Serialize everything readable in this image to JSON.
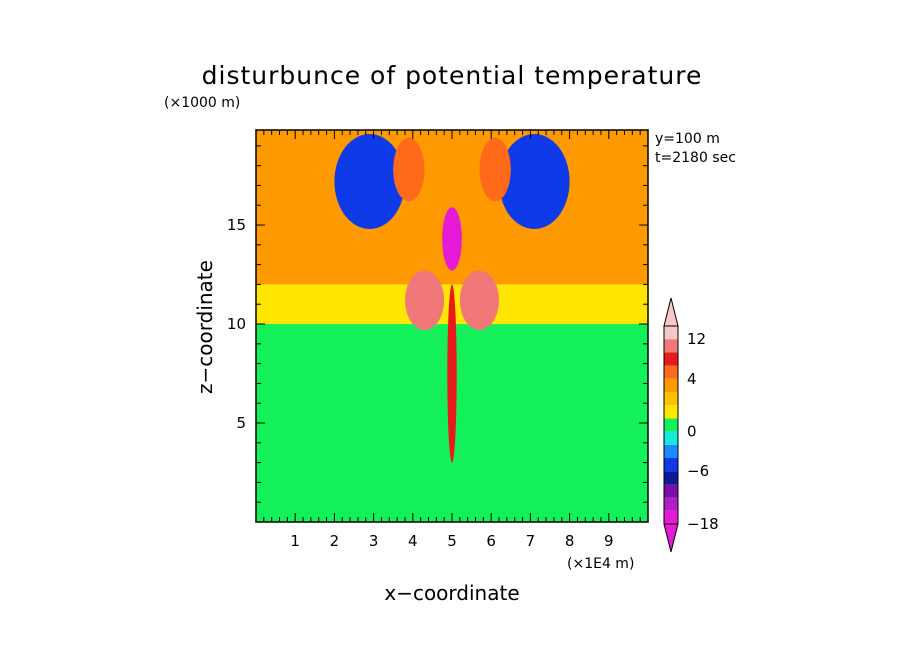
{
  "chart_data": {
    "type": "heatmap",
    "title": "disturbunce of potential temperature",
    "xlabel": "x−coordinate",
    "ylabel": "z−coordinate",
    "x_unit": "(×1E4 m)",
    "y_unit": "(×1000 m)",
    "annotations": [
      "y=100 m",
      "t=2180 sec"
    ],
    "xlim": [
      0,
      10
    ],
    "ylim": [
      0,
      19.8
    ],
    "x_ticks": [
      1,
      2,
      3,
      4,
      5,
      6,
      7,
      8,
      9
    ],
    "y_ticks": [
      5,
      10,
      15
    ],
    "colorbar": {
      "labels": [
        {
          "value": 12,
          "text": "12"
        },
        {
          "value": 4,
          "text": "4"
        },
        {
          "value": 0,
          "text": "0"
        },
        {
          "value": -6,
          "text": "−6"
        },
        {
          "value": -18,
          "text": "−18"
        }
      ],
      "levels": [
        {
          "min": -18,
          "max": -15,
          "color": "#e51ad6"
        },
        {
          "min": -15,
          "max": -12,
          "color": "#b01fc4"
        },
        {
          "min": -12,
          "max": -9,
          "color": "#7a0ea8"
        },
        {
          "min": -9,
          "max": -6,
          "color": "#0a1a9a"
        },
        {
          "min": -6,
          "max": -3,
          "color": "#0f3ae8"
        },
        {
          "min": -3,
          "max": -1,
          "color": "#1a8cff"
        },
        {
          "min": -1,
          "max": 0,
          "color": "#17e8d8"
        },
        {
          "min": 0,
          "max": 1,
          "color": "#14f05a"
        },
        {
          "min": 1,
          "max": 2,
          "color": "#ffe600"
        },
        {
          "min": 2,
          "max": 3,
          "color": "#ffc000"
        },
        {
          "min": 3,
          "max": 4,
          "color": "#ff9900"
        },
        {
          "min": 4,
          "max": 6,
          "color": "#ff6a1a"
        },
        {
          "min": 6,
          "max": 8,
          "color": "#e81a1a"
        },
        {
          "min": 8,
          "max": 12,
          "color": "#f07878"
        },
        {
          "min": 12,
          "max": 15,
          "color": "#f8c8c8"
        }
      ]
    },
    "field_features": [
      {
        "kind": "band",
        "zmin": 0,
        "zmax": 10,
        "value": 0.5
      },
      {
        "kind": "band",
        "zmin": 10,
        "zmax": 12,
        "value": 1.5
      },
      {
        "kind": "band",
        "zmin": 12,
        "zmax": 19.8,
        "value": 3.5
      },
      {
        "kind": "blob",
        "x": 5.0,
        "z": 14.3,
        "rx": 0.25,
        "rz": 1.6,
        "value": -16
      },
      {
        "kind": "blob",
        "x": 5.0,
        "z": 7.5,
        "rx": 0.12,
        "rz": 4.5,
        "value": 7
      },
      {
        "kind": "blob",
        "x": 2.9,
        "z": 17.2,
        "rx": 0.9,
        "rz": 2.4,
        "value": -5
      },
      {
        "kind": "blob",
        "x": 7.1,
        "z": 17.2,
        "rx": 0.9,
        "rz": 2.4,
        "value": -5
      },
      {
        "kind": "blob",
        "x": 4.3,
        "z": 11.2,
        "rx": 0.5,
        "rz": 1.5,
        "value": 10
      },
      {
        "kind": "blob",
        "x": 5.7,
        "z": 11.2,
        "rx": 0.5,
        "rz": 1.5,
        "value": 10
      },
      {
        "kind": "blob",
        "x": 3.9,
        "z": 17.8,
        "rx": 0.4,
        "rz": 1.6,
        "value": 4.5
      },
      {
        "kind": "blob",
        "x": 6.1,
        "z": 17.8,
        "rx": 0.4,
        "rz": 1.6,
        "value": 4.5
      }
    ]
  }
}
